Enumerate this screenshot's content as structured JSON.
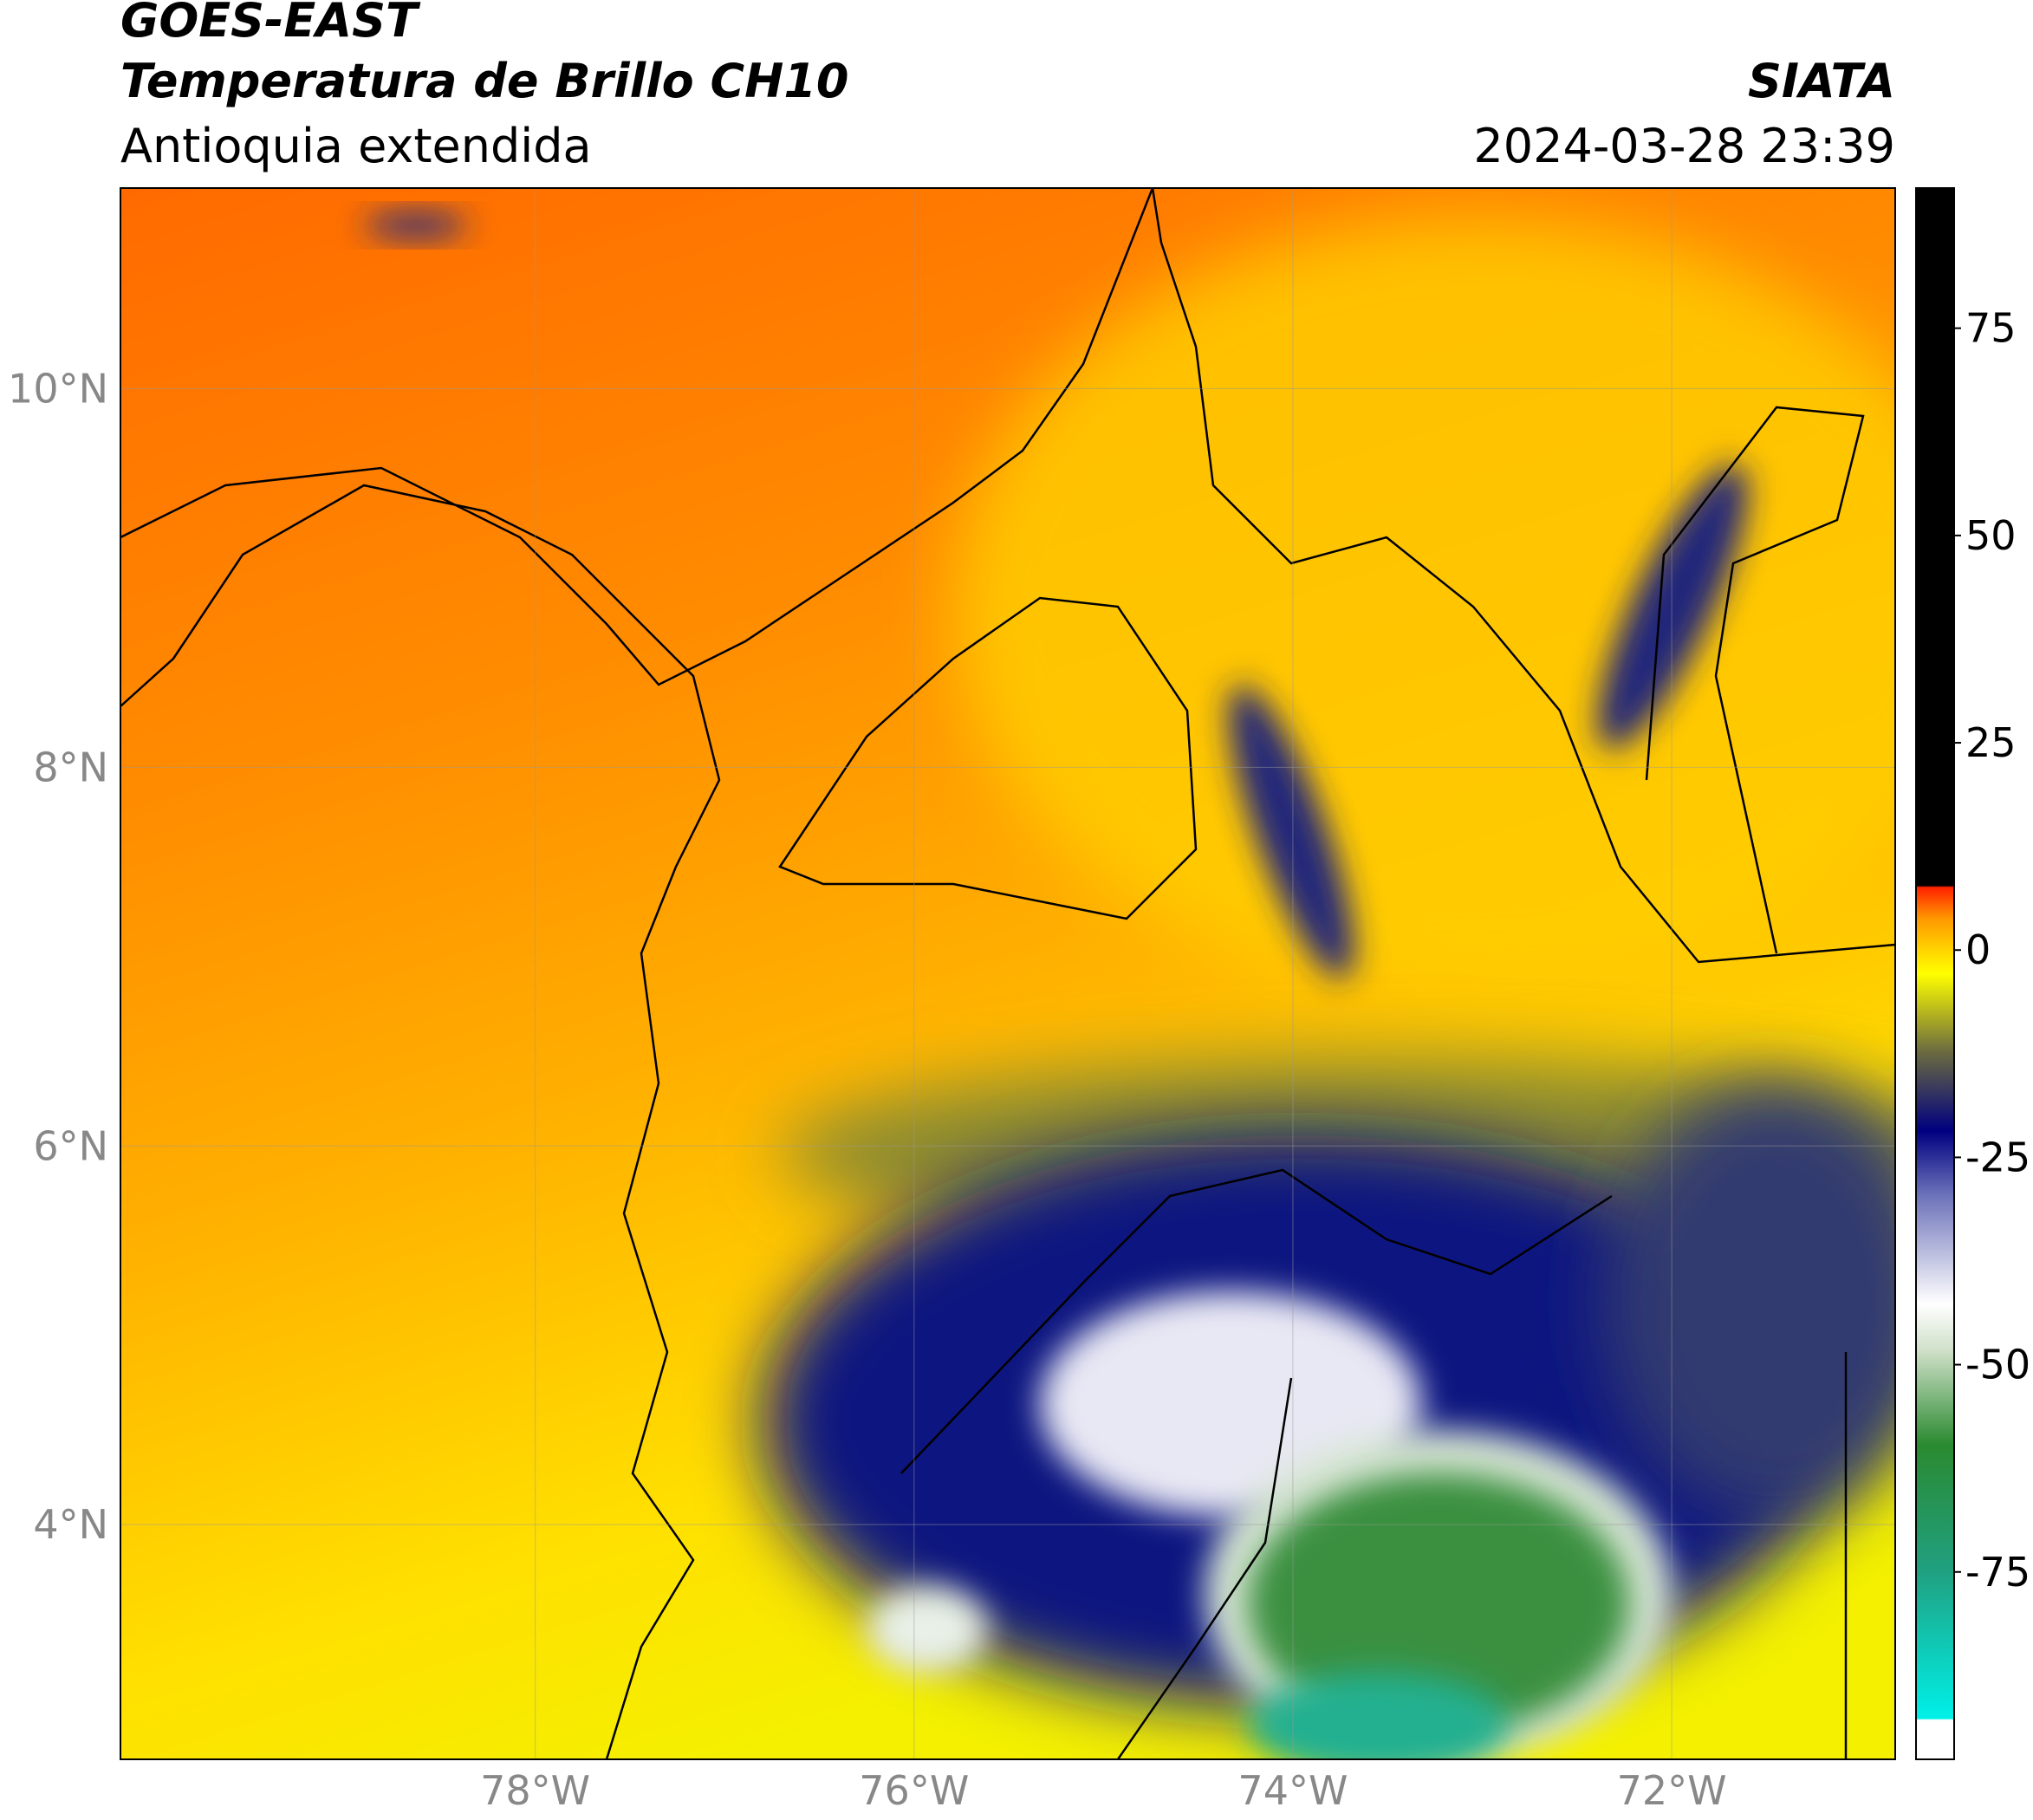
{
  "header": {
    "title": "GOES-EAST",
    "subtitle": "Temperatura de Brillo CH10",
    "region": "Antioquia extendida",
    "source": "SIATA",
    "datetime": "2024-03-28 23:39"
  },
  "map": {
    "xlim": [
      -80.19,
      -70.82
    ],
    "ylim": [
      2.76,
      11.06
    ],
    "xticks": [
      {
        "value": -78,
        "label": "78°W"
      },
      {
        "value": -76,
        "label": "76°W"
      },
      {
        "value": -74,
        "label": "74°W"
      },
      {
        "value": -72,
        "label": "72°W"
      }
    ],
    "yticks": [
      {
        "value": 10,
        "label": "10°N"
      },
      {
        "value": 8,
        "label": "8°N"
      },
      {
        "value": 6,
        "label": "6°N"
      },
      {
        "value": 4,
        "label": "4°N"
      }
    ],
    "grid": true
  },
  "colorbar": {
    "lim": [
      -97.6,
      91.9
    ],
    "ticks": [
      75,
      50,
      25,
      0,
      -25,
      -50,
      -75
    ]
  }
}
